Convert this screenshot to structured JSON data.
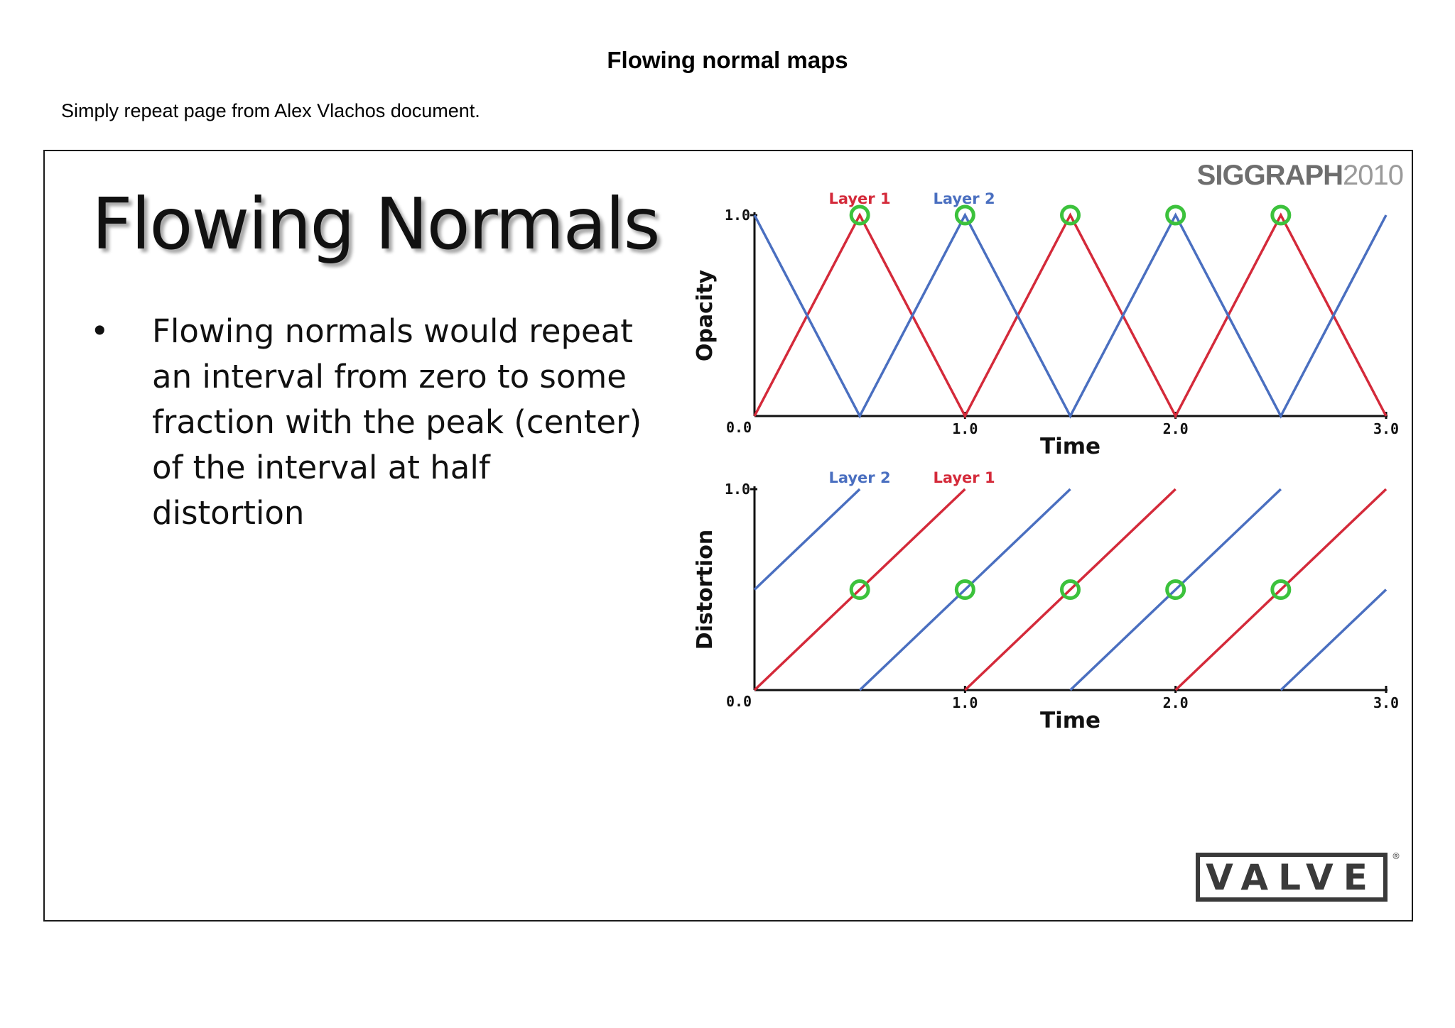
{
  "document": {
    "title": "Flowing normal maps",
    "subtitle": "Simply repeat page from Alex Vlachos document."
  },
  "slide": {
    "heading": "Flowing Normals",
    "bullet_symbol": "•",
    "bullet_text": "Flowing normals would repeat an interval from zero to some fraction with the peak (center) of the interval at half distortion",
    "conference_logo": {
      "brand": "SIGGRAPH",
      "year": "2010"
    },
    "company_logo": "VALVE",
    "registered_mark": "®"
  },
  "colors": {
    "layer1": "#d42a3a",
    "layer2": "#4a6fc0",
    "marker": "#3cc23c",
    "axis": "#111111"
  },
  "chart_data": [
    {
      "type": "line",
      "title": "",
      "xlabel": "Time",
      "ylabel": "Opacity",
      "xlim": [
        0,
        3
      ],
      "ylim": [
        0,
        1
      ],
      "x_ticks": [
        "0.0",
        "1.0",
        "2.0",
        "3.0"
      ],
      "y_ticks": [
        "0.0",
        "1.0"
      ],
      "legend": [
        "Layer 1",
        "Layer 2"
      ],
      "series": [
        {
          "name": "Layer 1",
          "points": [
            [
              0,
              0
            ],
            [
              0.5,
              1
            ],
            [
              1.0,
              0
            ],
            [
              1.5,
              1
            ],
            [
              2.0,
              0
            ],
            [
              2.5,
              1
            ],
            [
              3.0,
              0
            ]
          ]
        },
        {
          "name": "Layer 2",
          "points": [
            [
              0,
              1
            ],
            [
              0.5,
              0
            ],
            [
              1.0,
              1
            ],
            [
              1.5,
              0
            ],
            [
              2.0,
              1
            ],
            [
              2.5,
              0
            ],
            [
              3.0,
              1
            ]
          ]
        }
      ],
      "markers": [
        [
          0.5,
          1
        ],
        [
          1.0,
          1
        ],
        [
          1.5,
          1
        ],
        [
          2.0,
          1
        ],
        [
          2.5,
          1
        ]
      ]
    },
    {
      "type": "line",
      "title": "",
      "xlabel": "Time",
      "ylabel": "Distortion",
      "xlim": [
        0,
        3
      ],
      "ylim": [
        0,
        1
      ],
      "x_ticks": [
        "0.0",
        "1.0",
        "2.0",
        "3.0"
      ],
      "y_ticks": [
        "0.0",
        "1.0"
      ],
      "legend": [
        "Layer 2",
        "Layer 1"
      ],
      "series": [
        {
          "name": "Layer 1",
          "segments": [
            [
              [
                0,
                0
              ],
              [
                1.0,
                1
              ]
            ],
            [
              [
                1.0,
                0
              ],
              [
                2.0,
                1
              ]
            ],
            [
              [
                2.0,
                0
              ],
              [
                3.0,
                1
              ]
            ]
          ]
        },
        {
          "name": "Layer 2",
          "segments": [
            [
              [
                0,
                0.5
              ],
              [
                0.5,
                1
              ]
            ],
            [
              [
                0.5,
                0
              ],
              [
                1.5,
                1
              ]
            ],
            [
              [
                1.5,
                0
              ],
              [
                2.5,
                1
              ]
            ],
            [
              [
                2.5,
                0
              ],
              [
                3.0,
                0.5
              ]
            ]
          ]
        }
      ],
      "markers": [
        [
          0.5,
          0.5
        ],
        [
          1.0,
          0.5
        ],
        [
          1.5,
          0.5
        ],
        [
          2.0,
          0.5
        ],
        [
          2.5,
          0.5
        ]
      ]
    }
  ]
}
